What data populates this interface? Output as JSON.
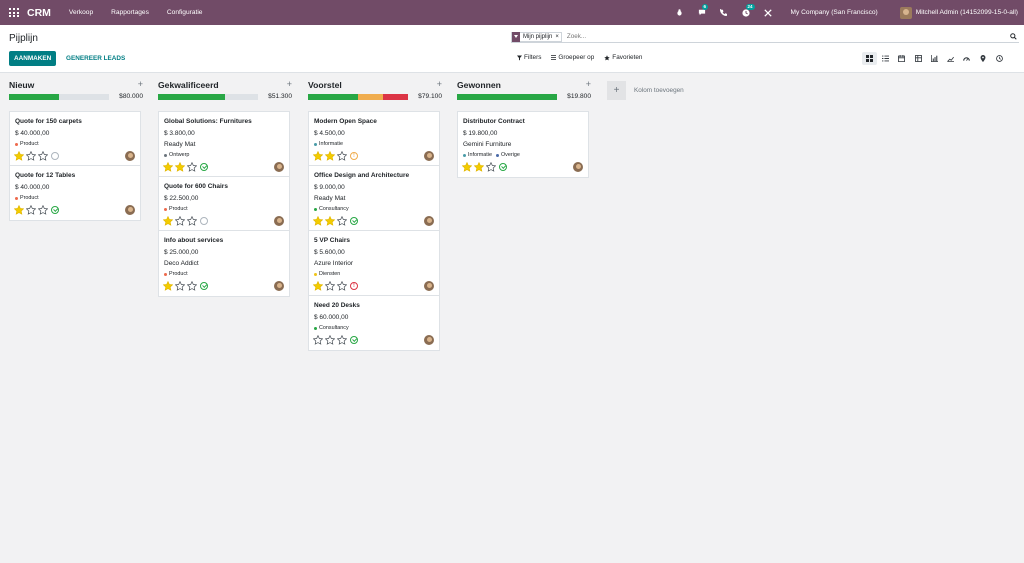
{
  "navbar": {
    "app_name": "CRM",
    "menu": [
      "Verkoop",
      "Rapportages",
      "Configuratie"
    ],
    "messages_badge": "6",
    "activities_badge": "24",
    "company": "My Company (San Francisco)",
    "user": "Mitchell Admin (14152099-15-0-all)",
    "bg_color": "#714b67"
  },
  "control_panel": {
    "title": "Pijplijn",
    "create_label": "AANMAKEN",
    "generate_label": "GENEREER LEADS",
    "facet_label": "Mijn pijplijn",
    "facet_remove": "×",
    "search_placeholder": "Zoek...",
    "filters_label": "Filters",
    "groupby_label": "Groepeer op",
    "favorites_label": "Favorieten",
    "views": [
      "kanban",
      "list",
      "calendar",
      "pivot",
      "graph",
      "cohort",
      "dashboard",
      "map",
      "activity"
    ],
    "active_view": "kanban"
  },
  "kanban": {
    "add_column_label": "Kolom toevoegen",
    "columns": [
      {
        "title": "Nieuw",
        "total": "$80.000",
        "progress": [
          {
            "color": "#28a745",
            "pct": 50
          }
        ],
        "cards": [
          {
            "title": "Quote for 150 carpets",
            "amount": "$ 40.000,00",
            "partner": "",
            "tags": [
              {
                "label": "Product",
                "color": "#ee6a4c"
              }
            ],
            "stars": 1,
            "activity": "none"
          },
          {
            "title": "Quote for 12 Tables",
            "amount": "$ 40.000,00",
            "partner": "",
            "tags": [
              {
                "label": "Product",
                "color": "#ee6a4c"
              }
            ],
            "stars": 1,
            "activity": "ok"
          }
        ]
      },
      {
        "title": "Gekwalificeerd",
        "total": "$51.300",
        "progress": [
          {
            "color": "#28a745",
            "pct": 67
          }
        ],
        "cards": [
          {
            "title": "Global Solutions: Furnitures",
            "amount": "$ 3.800,00",
            "partner": "Ready Mat",
            "tags": [
              {
                "label": "Ontwerp",
                "color": "#6c757d"
              }
            ],
            "stars": 2,
            "activity": "ok"
          },
          {
            "title": "Quote for 600 Chairs",
            "amount": "$ 22.500,00",
            "partner": "",
            "tags": [
              {
                "label": "Product",
                "color": "#ee6a4c"
              }
            ],
            "stars": 1,
            "activity": "none"
          },
          {
            "title": "Info about services",
            "amount": "$ 25.000,00",
            "partner": "Deco Addict",
            "tags": [
              {
                "label": "Product",
                "color": "#ee6a4c"
              }
            ],
            "stars": 1,
            "activity": "ok"
          }
        ]
      },
      {
        "title": "Voorstel",
        "total": "$79.100",
        "progress": [
          {
            "color": "#28a745",
            "pct": 50
          },
          {
            "color": "#f0ad4e",
            "pct": 25
          },
          {
            "color": "#dc3545",
            "pct": 25
          }
        ],
        "cards": [
          {
            "title": "Modern Open Space",
            "amount": "$ 4.500,00",
            "partner": "",
            "tags": [
              {
                "label": "Informatie",
                "color": "#4a9ca8"
              }
            ],
            "stars": 2,
            "activity": "warn"
          },
          {
            "title": "Office Design and Architecture",
            "amount": "$ 9.000,00",
            "partner": "Ready Mat",
            "tags": [
              {
                "label": "Consultancy",
                "color": "#28a745"
              }
            ],
            "stars": 2,
            "activity": "ok"
          },
          {
            "title": "5 VP Chairs",
            "amount": "$ 5.600,00",
            "partner": "Azure Interior",
            "tags": [
              {
                "label": "Diensten",
                "color": "#f0c419"
              }
            ],
            "stars": 1,
            "activity": "late"
          },
          {
            "title": "Need 20 Desks",
            "amount": "$ 60.000,00",
            "partner": "",
            "tags": [
              {
                "label": "Consultancy",
                "color": "#28a745"
              }
            ],
            "stars": 0,
            "activity": "ok"
          }
        ]
      },
      {
        "title": "Gewonnen",
        "total": "$19.800",
        "progress": [
          {
            "color": "#28a745",
            "pct": 100
          }
        ],
        "cards": [
          {
            "title": "Distributor Contract",
            "amount": "$ 19.800,00",
            "partner": "Gemini Furniture",
            "tags": [
              {
                "label": "Informatie",
                "color": "#4a9ca8"
              },
              {
                "label": "Overige",
                "color": "#4a6aa8"
              }
            ],
            "stars": 2,
            "activity": "ok"
          }
        ]
      }
    ]
  }
}
